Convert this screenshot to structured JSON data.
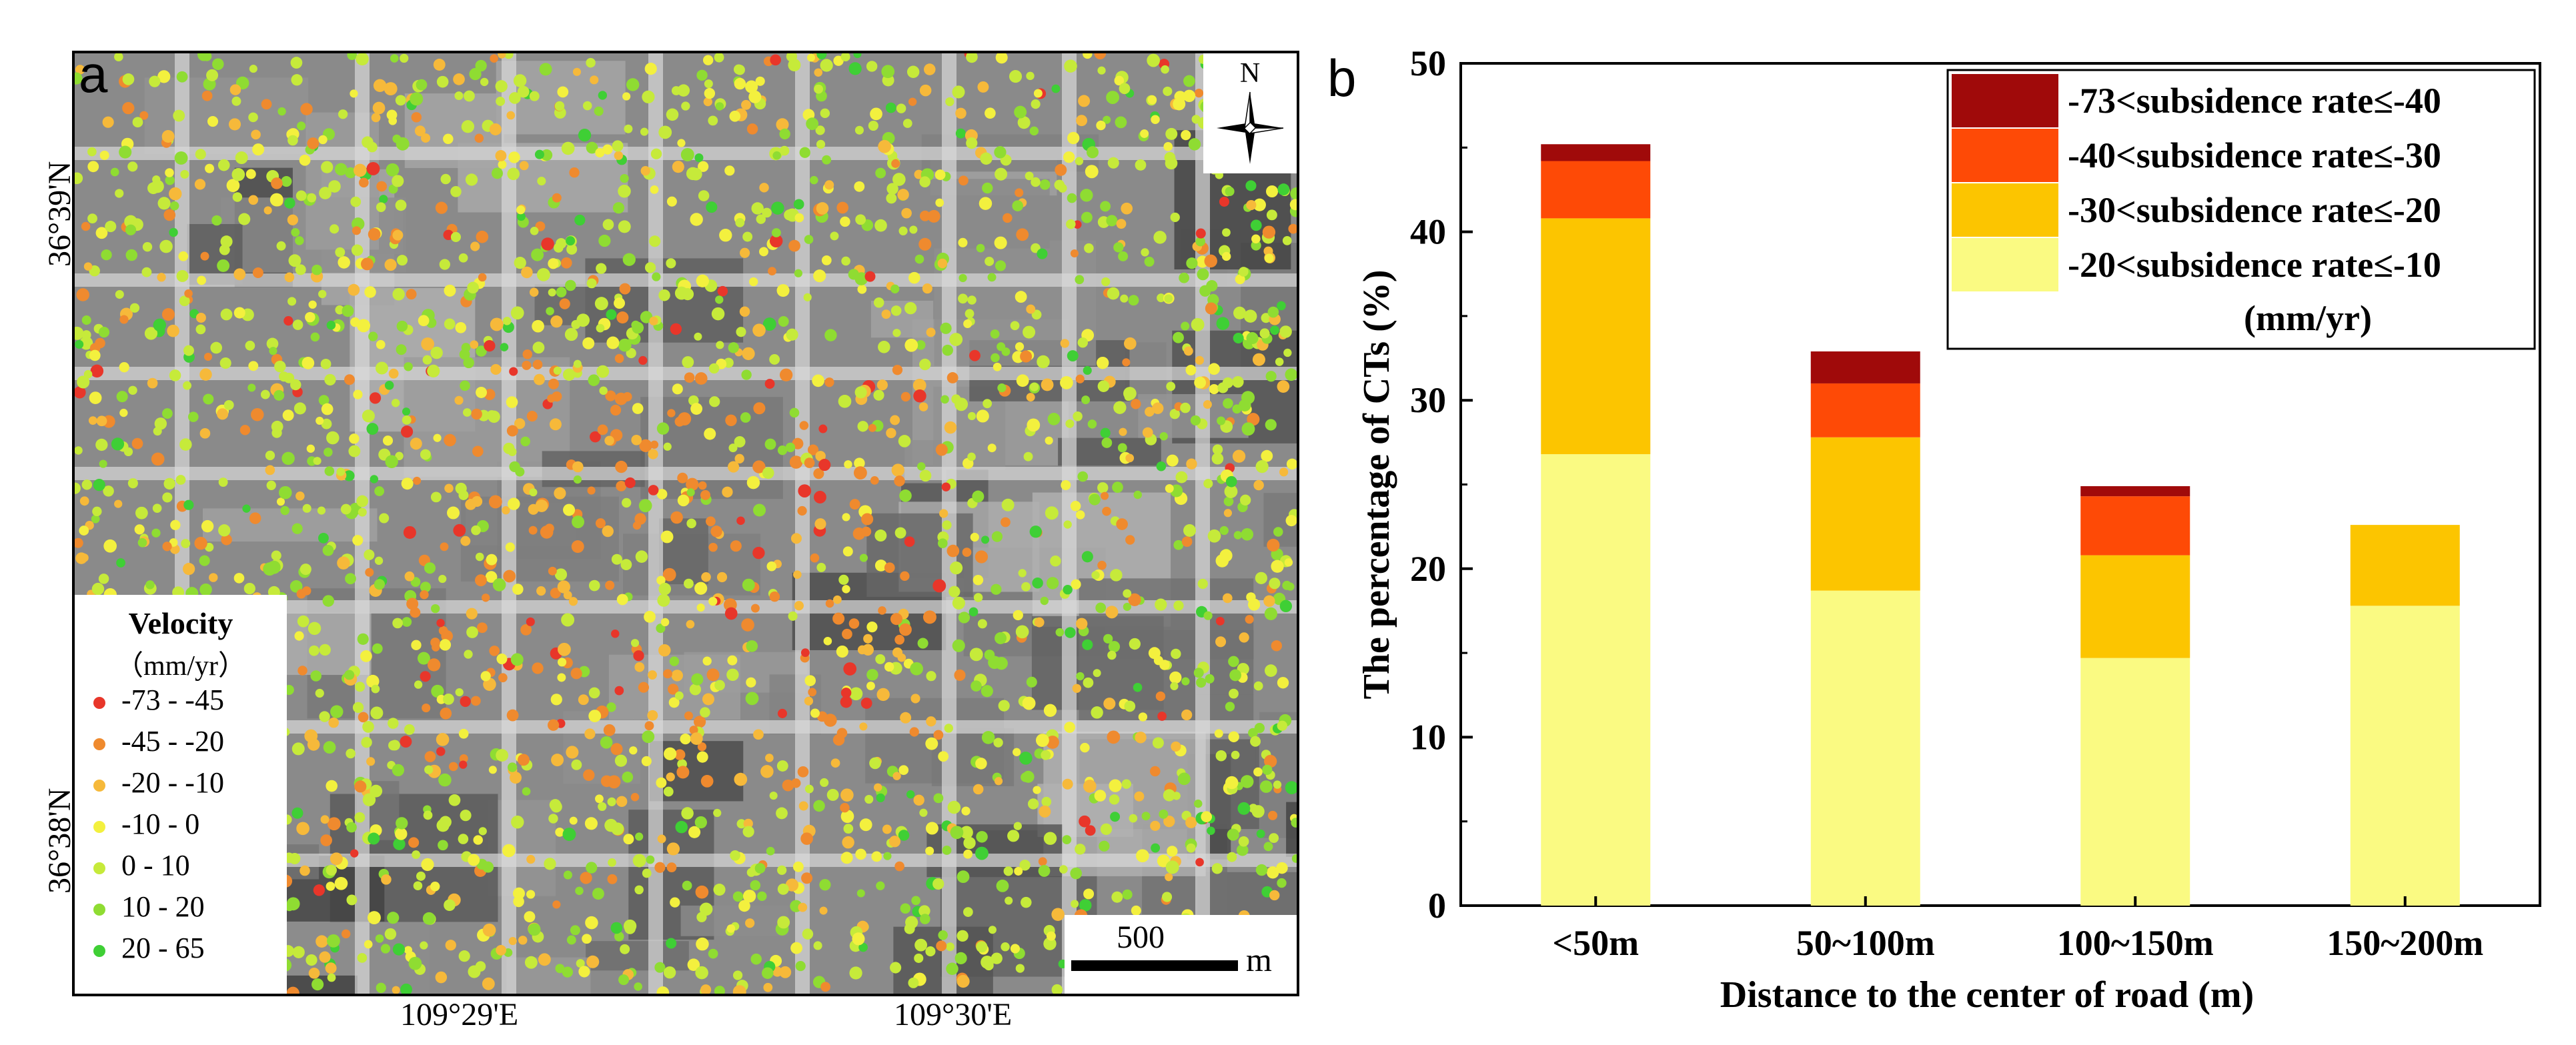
{
  "panel_a": {
    "label": "a",
    "lat_labels": [
      "36°39'N",
      "36°38'N"
    ],
    "lon_labels": [
      "109°29'E",
      "109°30'E"
    ],
    "north": "N",
    "scale": {
      "value": "500",
      "unit": "m"
    },
    "legend": {
      "title": "Velocity",
      "unit": "（mm/yr）",
      "items": [
        {
          "label": "-73 - -45",
          "color": "#e8362a"
        },
        {
          "label": "-45 - -20",
          "color": "#ef8a2e"
        },
        {
          "label": "-20 - -10",
          "color": "#f6b93a"
        },
        {
          "label": "-10 - 0",
          "color": "#f3f03e"
        },
        {
          "label": "0 - 10",
          "color": "#c6ea3a"
        },
        {
          "label": "10 - 20",
          "color": "#8fdc32"
        },
        {
          "label": "20 - 65",
          "color": "#3fcf35"
        }
      ]
    }
  },
  "panel_b": {
    "label": "b"
  },
  "chart_data": {
    "type": "bar",
    "stacked": true,
    "categories": [
      "<50m",
      "50~100m",
      "100~150m",
      "150~200m"
    ],
    "series": [
      {
        "name": "-20<subsidence rate≤-10",
        "color": "#fafa82",
        "values": [
          26.8,
          18.7,
          14.7,
          17.8
        ]
      },
      {
        "name": "-30<subsidence rate≤-20",
        "color": "#fcc500",
        "values": [
          14.0,
          9.1,
          6.1,
          4.8
        ]
      },
      {
        "name": "-40<subsidence rate≤-30",
        "color": "#fe4a06",
        "values": [
          3.4,
          3.2,
          3.5,
          0
        ]
      },
      {
        "name": "-73<subsidence rate≤-40",
        "color": "#a00a0a",
        "values": [
          1.0,
          1.9,
          0.6,
          0
        ]
      }
    ],
    "legend_order": [
      "-73<subsidence rate≤-40",
      "-40<subsidence rate≤-30",
      "-30<subsidence rate≤-20",
      "-20<subsidence rate≤-10"
    ],
    "legend_unit": "(mm/yr)",
    "xlabel": "Distance to the center of road (m)",
    "ylabel": "The percentage of CTs (%)",
    "ylim": [
      0,
      50
    ],
    "yticks": [
      0,
      10,
      20,
      30,
      40,
      50
    ],
    "legend_position": "top-right"
  }
}
